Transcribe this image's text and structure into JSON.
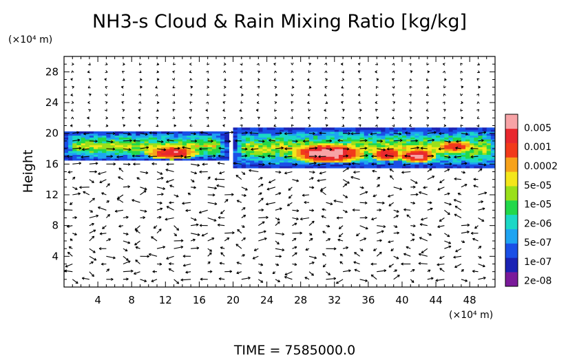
{
  "chart_data": {
    "type": "heatmap",
    "title": "NH3-s Cloud & Rain Mixing Ratio [kg/kg]",
    "ylabel": "Height",
    "y_unit": "(×10⁴ m)",
    "x_unit": "(×10⁴ m)",
    "xlim": [
      0,
      51
    ],
    "ylim": [
      0,
      30
    ],
    "x_ticks": [
      4,
      8,
      12,
      16,
      20,
      24,
      28,
      32,
      36,
      40,
      44,
      48
    ],
    "y_ticks": [
      4,
      8,
      12,
      16,
      20,
      24,
      28
    ],
    "time_label": "TIME  =  7585000.0",
    "colorbar": {
      "labels": [
        "0.005",
        "0.001",
        "0.0002",
        "5e-05",
        "1e-05",
        "2e-06",
        "5e-07",
        "1e-07",
        "2e-08"
      ],
      "colors": [
        "#7a1a9a",
        "#1a22b4",
        "#1a4fe6",
        "#1ea4f2",
        "#1bd8c6",
        "#22d84a",
        "#9ae01a",
        "#f4e61a",
        "#f7a21a",
        "#f23a1a",
        "#e8282e",
        "#f7a3a6"
      ]
    },
    "cloud_layers": [
      {
        "x0": 0,
        "x1": 19,
        "y0": 16.5,
        "y1": 20
      },
      {
        "x0": 20,
        "x1": 51,
        "y0": 15.5,
        "y1": 20.5
      }
    ],
    "cloud_cores": [
      {
        "x": 12.5,
        "y": 17.4,
        "rx": 3.2,
        "ry": 0.9,
        "level": 0.9
      },
      {
        "x": 31,
        "y": 17.3,
        "rx": 4.5,
        "ry": 1.3,
        "level": 1.0
      },
      {
        "x": 38,
        "y": 17.2,
        "rx": 2.0,
        "ry": 0.9,
        "level": 0.9
      },
      {
        "x": 41.5,
        "y": 17.0,
        "rx": 2.4,
        "ry": 0.9,
        "level": 0.95
      },
      {
        "x": 46,
        "y": 18.2,
        "rx": 2.2,
        "ry": 0.8,
        "level": 0.85
      }
    ]
  }
}
